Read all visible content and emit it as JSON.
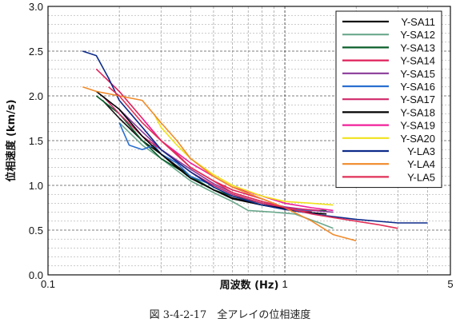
{
  "caption": "図 3-4-2-17　全アレイの位相速度",
  "chart_data": {
    "type": "line",
    "title": "",
    "xlabel": "周波数 (Hz)",
    "ylabel": "位相速度 (km/s)",
    "xscale": "log",
    "xlim": [
      0.1,
      5
    ],
    "ylim": [
      0.0,
      3.0
    ],
    "x_ticks": [
      "0.1",
      "1",
      "5"
    ],
    "y_ticks": [
      "0.0",
      "0.5",
      "1.0",
      "1.5",
      "2.0",
      "2.5",
      "3.0"
    ],
    "grid": true,
    "legend_position": "top-right",
    "series": [
      {
        "name": "Y-SA11",
        "color": "#111111",
        "x": [
          0.17,
          0.2,
          0.25,
          0.3,
          0.4,
          0.5,
          0.6,
          0.8,
          1.0,
          1.2,
          1.4
        ],
        "y": [
          1.95,
          1.75,
          1.5,
          1.35,
          1.1,
          0.95,
          0.85,
          0.78,
          0.74,
          0.72,
          0.72
        ]
      },
      {
        "name": "Y-SA12",
        "color": "#6aa88c",
        "x": [
          0.2,
          0.25,
          0.3,
          0.4,
          0.5,
          0.6,
          0.7,
          0.9,
          1.1,
          1.4,
          1.6
        ],
        "y": [
          1.7,
          1.45,
          1.3,
          1.05,
          0.92,
          0.82,
          0.72,
          0.7,
          0.68,
          0.58,
          0.52
        ]
      },
      {
        "name": "Y-SA13",
        "color": "#0b5f2b",
        "x": [
          0.16,
          0.2,
          0.25,
          0.3,
          0.4,
          0.5,
          0.6,
          0.8,
          1.0,
          1.2,
          1.5
        ],
        "y": [
          2.0,
          1.8,
          1.5,
          1.3,
          1.1,
          0.95,
          0.88,
          0.8,
          0.75,
          0.72,
          0.72
        ]
      },
      {
        "name": "Y-SA14",
        "color": "#e0205a",
        "x": [
          0.16,
          0.2,
          0.25,
          0.3,
          0.35,
          0.4,
          0.5,
          0.6,
          0.8,
          1.0,
          1.3
        ],
        "y": [
          2.3,
          2.05,
          1.75,
          1.5,
          1.35,
          1.2,
          1.05,
          0.95,
          0.85,
          0.75,
          0.7
        ]
      },
      {
        "name": "Y-SA15",
        "color": "#8a3a9a",
        "x": [
          0.2,
          0.25,
          0.3,
          0.4,
          0.5,
          0.6,
          0.8,
          1.0,
          1.3,
          1.6
        ],
        "y": [
          1.85,
          1.6,
          1.4,
          1.18,
          1.02,
          0.92,
          0.82,
          0.76,
          0.72,
          0.7
        ]
      },
      {
        "name": "Y-SA16",
        "color": "#2a6fd0",
        "x": [
          0.2,
          0.22,
          0.25,
          0.28,
          0.3,
          0.35,
          0.4,
          0.5,
          0.6,
          0.8,
          1.0,
          1.3
        ],
        "y": [
          1.7,
          1.45,
          1.4,
          1.45,
          1.35,
          1.25,
          1.1,
          1.0,
          0.9,
          0.8,
          0.74,
          0.72
        ]
      },
      {
        "name": "Y-SA17",
        "color": "#d0286a",
        "x": [
          0.17,
          0.2,
          0.25,
          0.3,
          0.4,
          0.5,
          0.6,
          0.8,
          1.0,
          1.4
        ],
        "y": [
          2.0,
          1.8,
          1.55,
          1.4,
          1.15,
          1.0,
          0.9,
          0.8,
          0.75,
          0.72
        ]
      },
      {
        "name": "Y-SA18",
        "color": "#000000",
        "x": [
          0.16,
          0.2,
          0.25,
          0.3,
          0.35,
          0.4,
          0.5,
          0.6,
          0.8,
          1.0,
          1.2,
          1.5
        ],
        "y": [
          2.05,
          1.85,
          1.55,
          1.35,
          1.2,
          1.08,
          0.95,
          0.86,
          0.78,
          0.74,
          0.7,
          0.68
        ]
      },
      {
        "name": "Y-SA19",
        "color": "#f0209a",
        "x": [
          0.25,
          0.3,
          0.4,
          0.5,
          0.6,
          0.8,
          1.0,
          1.3,
          1.6
        ],
        "y": [
          1.75,
          1.5,
          1.25,
          1.1,
          0.98,
          0.88,
          0.8,
          0.75,
          0.72
        ]
      },
      {
        "name": "Y-SA20",
        "color": "#f0e21a",
        "x": [
          0.28,
          0.3,
          0.35,
          0.4,
          0.5,
          0.6,
          0.8,
          1.0,
          1.3,
          1.6
        ],
        "y": [
          1.8,
          1.65,
          1.45,
          1.3,
          1.12,
          1.0,
          0.88,
          0.82,
          0.8,
          0.78
        ]
      },
      {
        "name": "Y-LA3",
        "color": "#0d2a8a",
        "x": [
          0.14,
          0.16,
          0.18,
          0.2,
          0.25,
          0.3,
          0.4,
          0.5,
          0.6,
          0.8,
          1.0,
          1.5,
          2.0,
          3.0,
          4.0
        ],
        "y": [
          2.5,
          2.45,
          2.2,
          1.95,
          1.65,
          1.4,
          1.15,
          0.98,
          0.88,
          0.78,
          0.73,
          0.66,
          0.62,
          0.58,
          0.58
        ]
      },
      {
        "name": "Y-LA4",
        "color": "#f08a2a",
        "x": [
          0.14,
          0.16,
          0.2,
          0.25,
          0.3,
          0.35,
          0.4,
          0.5,
          0.6,
          0.8,
          1.0,
          1.3,
          1.6,
          2.0
        ],
        "y": [
          2.1,
          2.05,
          2.0,
          1.95,
          1.7,
          1.5,
          1.3,
          1.1,
          0.98,
          0.85,
          0.75,
          0.6,
          0.45,
          0.38
        ]
      },
      {
        "name": "Y-LA5",
        "color": "#e03058",
        "x": [
          0.18,
          0.2,
          0.25,
          0.3,
          0.4,
          0.5,
          0.6,
          0.8,
          1.0,
          1.3,
          1.6,
          2.0,
          2.5,
          3.0
        ],
        "y": [
          2.1,
          2.0,
          1.7,
          1.5,
          1.2,
          1.05,
          0.92,
          0.82,
          0.75,
          0.68,
          0.64,
          0.6,
          0.56,
          0.52
        ]
      }
    ]
  }
}
